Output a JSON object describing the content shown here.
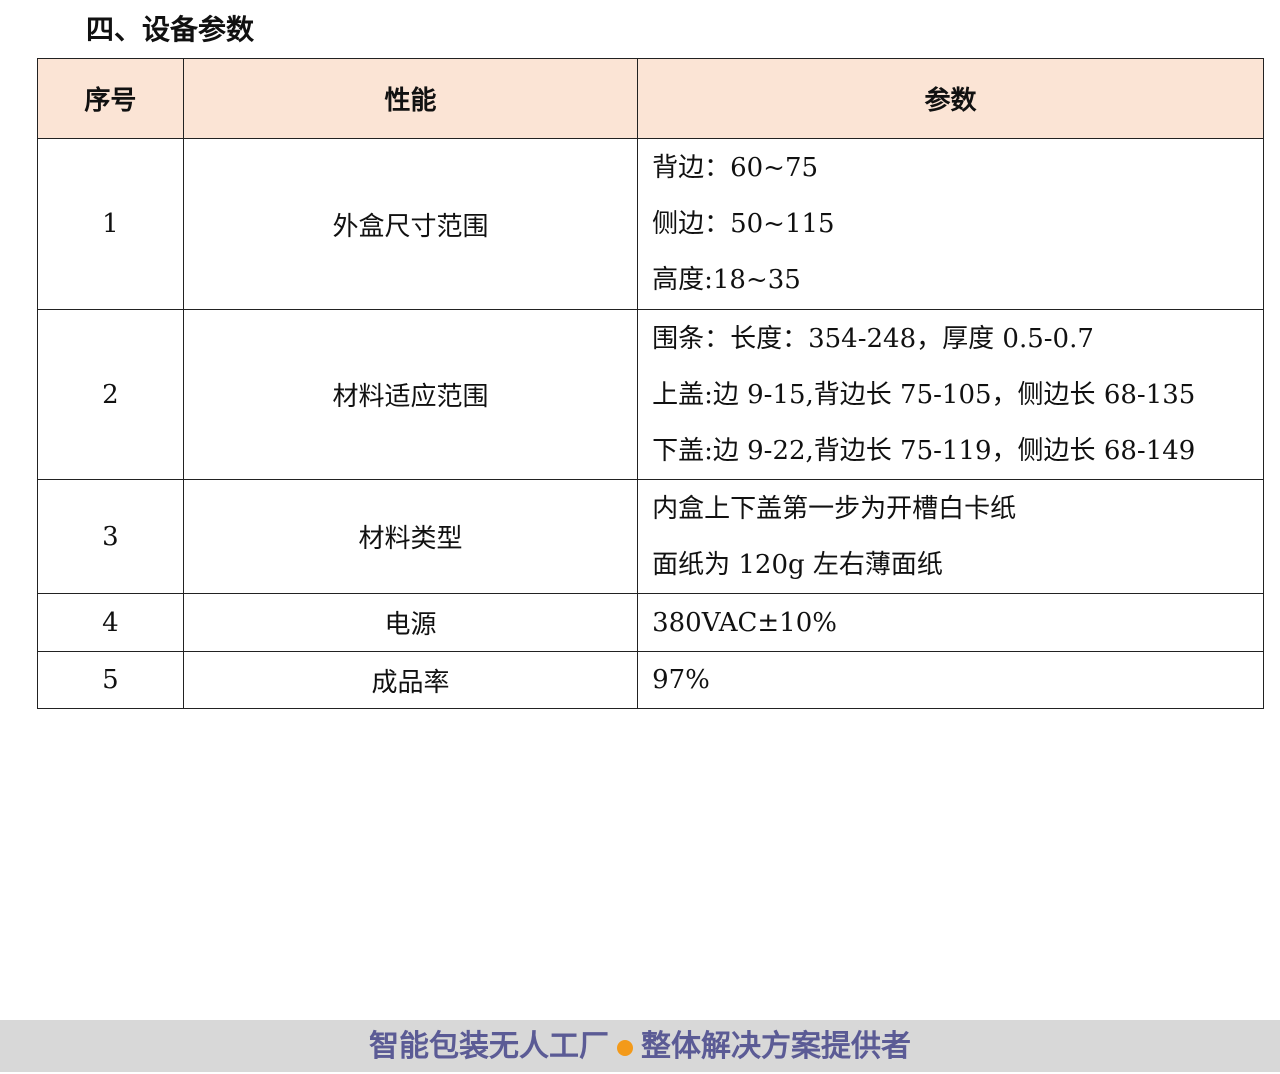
{
  "section_title": "四、设备参数",
  "table": {
    "headers": [
      "序号",
      "性能",
      "参数"
    ],
    "rows": [
      {
        "no": "1",
        "perf": "外盒尺寸范围",
        "params": [
          "背边：60~75",
          "侧边：50~115",
          "高度:18~35"
        ]
      },
      {
        "no": "2",
        "perf": "材料适应范围",
        "params": [
          "围条：长度：354-248，厚度 0.5-0.7",
          "上盖:边 9-15,背边长 75-105，侧边长 68-135",
          "下盖:边 9-22,背边长 75-119，侧边长 68-149"
        ]
      },
      {
        "no": "3",
        "perf": "材料类型",
        "params": [
          "内盒上下盖第一步为开槽白卡纸",
          "面纸为 120g 左右薄面纸"
        ]
      },
      {
        "no": "4",
        "perf": "电源",
        "params": [
          "380VAC±10%"
        ]
      },
      {
        "no": "5",
        "perf": "成品率",
        "params": [
          "97%"
        ]
      }
    ]
  },
  "footer": {
    "left": "智能包装无人工厂",
    "right": "整体解决方案提供者",
    "dot_color": "#f39a1a"
  }
}
